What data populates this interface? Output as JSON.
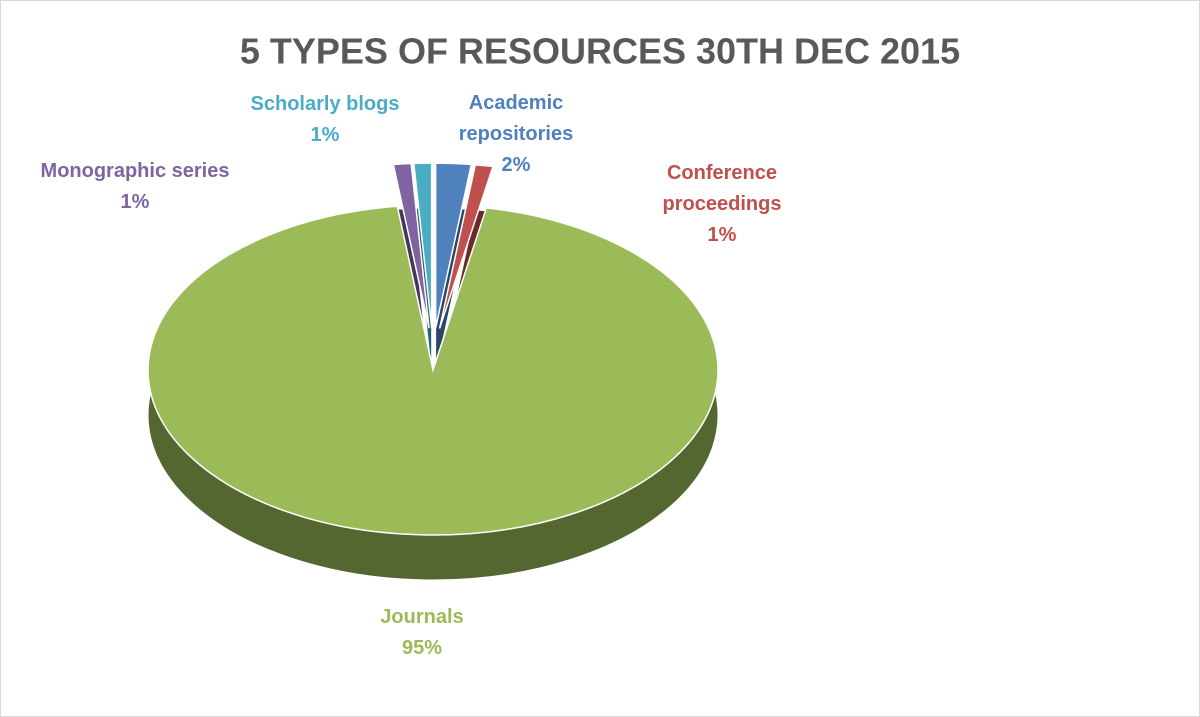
{
  "chart_data": {
    "type": "pie",
    "title": "5 TYPES OF RESOURCES 30TH DEC 2015",
    "categories": [
      "Academic repositories",
      "Conference proceedings",
      "Journals",
      "Monographic series",
      "Scholarly blogs"
    ],
    "values": [
      2,
      1,
      95,
      1,
      1
    ],
    "value_labels": [
      "2%",
      "1%",
      "95%",
      "1%",
      "1%"
    ],
    "colors": [
      "#4f81bd",
      "#c0504d",
      "#9bbb59",
      "#8064a2",
      "#4bacc6"
    ]
  }
}
